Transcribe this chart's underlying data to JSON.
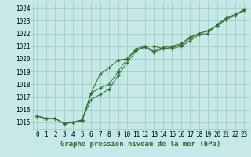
{
  "line1": {
    "x": [
      0,
      1,
      2,
      3,
      4,
      5,
      6,
      7,
      8,
      9,
      10,
      11,
      12,
      13,
      14,
      15,
      16,
      17,
      18,
      19,
      20,
      21,
      22,
      23
    ],
    "y": [
      1015.5,
      1015.3,
      1015.3,
      1014.9,
      1015.0,
      1015.2,
      1016.8,
      1017.2,
      1017.6,
      1018.7,
      1019.7,
      1020.6,
      1021.0,
      1021.0,
      1020.8,
      1020.9,
      1021.1,
      1021.6,
      1022.0,
      1022.2,
      1022.6,
      1023.1,
      1023.4,
      1023.9
    ]
  },
  "line2": {
    "x": [
      0,
      1,
      2,
      3,
      4,
      5,
      6,
      7,
      8,
      9,
      10,
      11,
      12,
      13,
      14,
      15,
      16,
      17,
      18,
      19,
      20,
      21,
      22,
      23
    ],
    "y": [
      1015.5,
      1015.3,
      1015.3,
      1014.9,
      1015.0,
      1015.2,
      1017.3,
      1017.7,
      1018.0,
      1019.0,
      1020.0,
      1020.8,
      1021.0,
      1020.6,
      1020.9,
      1021.0,
      1021.2,
      1021.7,
      1022.0,
      1022.2,
      1022.6,
      1023.1,
      1023.4,
      1023.8
    ]
  },
  "line3": {
    "x": [
      0,
      1,
      2,
      3,
      4,
      5,
      6,
      7,
      8,
      9,
      10,
      11,
      12,
      13,
      14,
      15,
      16,
      17,
      18,
      19,
      20,
      21,
      22,
      23
    ],
    "y": [
      1015.5,
      1015.3,
      1015.3,
      1014.9,
      1015.0,
      1015.1,
      1017.3,
      1018.8,
      1019.3,
      1019.9,
      1020.0,
      1020.7,
      1020.9,
      1020.5,
      1020.8,
      1020.8,
      1021.0,
      1021.4,
      1021.9,
      1022.0,
      1022.7,
      1023.2,
      1023.5,
      1023.8
    ]
  },
  "line_color": "#2d6e2d",
  "marker_color": "#2d6e2d",
  "bg_color": "#c5e8e8",
  "grid_color": "#9ec8b8",
  "ylabel_values": [
    1015,
    1016,
    1017,
    1018,
    1019,
    1020,
    1021,
    1022,
    1023,
    1024
  ],
  "xlabel_values": [
    0,
    1,
    2,
    3,
    4,
    5,
    6,
    7,
    8,
    9,
    10,
    11,
    12,
    13,
    14,
    15,
    16,
    17,
    18,
    19,
    20,
    21,
    22,
    23
  ],
  "ylim": [
    1014.5,
    1024.5
  ],
  "xlim": [
    -0.5,
    23.5
  ],
  "xlabel": "Graphe pression niveau de la mer (hPa)",
  "label_fontsize": 5.5,
  "xlabel_fontsize": 6.5
}
